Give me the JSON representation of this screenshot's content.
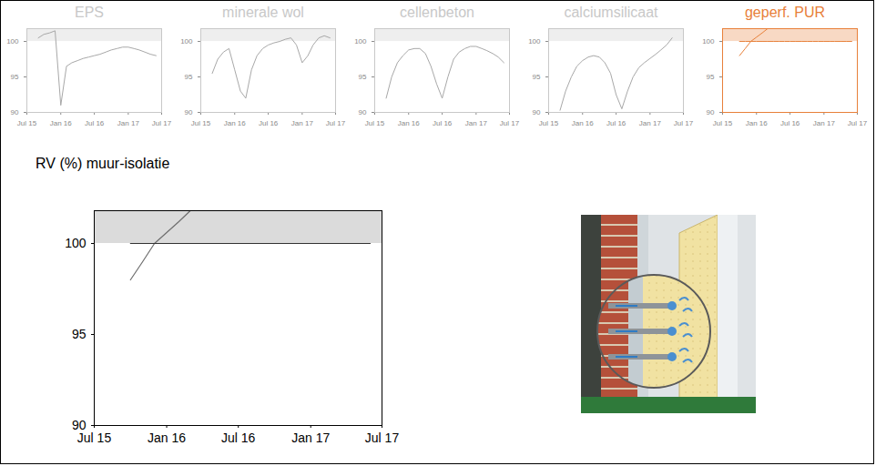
{
  "chart_data": [
    {
      "type": "line",
      "title": "EPS",
      "color": "#c8c8c8",
      "x": [
        "2015-07",
        "2015-08",
        "2015-09",
        "2015-10",
        "2015-11",
        "2015-12",
        "2016-01",
        "2016-02",
        "2016-03",
        "2016-04",
        "2016-05",
        "2016-06",
        "2016-07",
        "2016-08",
        "2016-09",
        "2016-10",
        "2016-11",
        "2016-12",
        "2017-01",
        "2017-02",
        "2017-03",
        "2017-04",
        "2017-05",
        "2017-06",
        "2017-07"
      ],
      "series": [
        {
          "color": "#a8a8a8",
          "values": [
            null,
            null,
            100.5,
            101,
            101.2,
            101.5,
            91,
            96.5,
            97,
            97.3,
            97.6,
            97.8,
            98,
            98.2,
            98.5,
            98.8,
            99,
            99.2,
            99.2,
            99,
            98.8,
            98.5,
            98.2,
            98,
            null
          ]
        }
      ],
      "band": [
        100,
        101.8
      ],
      "xlim": [
        "2015-07",
        "2017-07"
      ],
      "xticks": [
        {
          "value": "2015-07",
          "label": "Jul 15"
        },
        {
          "value": "2016-01",
          "label": "Jan 16"
        },
        {
          "value": "2016-07",
          "label": "Jul 16"
        },
        {
          "value": "2017-01",
          "label": "Jan 17"
        },
        {
          "value": "2017-07",
          "label": "Jul 17"
        }
      ],
      "ylim": [
        90,
        101.8
      ],
      "yticks": [
        90,
        95,
        100
      ]
    },
    {
      "type": "line",
      "title": "minerale wol",
      "color": "#c8c8c8",
      "x": [
        "2015-07",
        "2015-08",
        "2015-09",
        "2015-10",
        "2015-11",
        "2015-12",
        "2016-01",
        "2016-02",
        "2016-03",
        "2016-04",
        "2016-05",
        "2016-06",
        "2016-07",
        "2016-08",
        "2016-09",
        "2016-10",
        "2016-11",
        "2016-12",
        "2017-01",
        "2017-02",
        "2017-03",
        "2017-04",
        "2017-05",
        "2017-06",
        "2017-07"
      ],
      "series": [
        {
          "color": "#a8a8a8",
          "values": [
            null,
            null,
            95.5,
            97.5,
            98.5,
            99,
            96,
            93,
            92,
            96,
            98,
            99,
            99.5,
            99.8,
            100,
            100.3,
            100.5,
            99.5,
            97,
            98,
            99.5,
            100.5,
            100.8,
            100.5,
            null
          ]
        }
      ],
      "band": [
        100,
        101.8
      ],
      "xlim": [
        "2015-07",
        "2017-07"
      ],
      "xticks": [
        {
          "value": "2015-07",
          "label": "Jul 15"
        },
        {
          "value": "2016-01",
          "label": "Jan 16"
        },
        {
          "value": "2016-07",
          "label": "Jul 16"
        },
        {
          "value": "2017-01",
          "label": "Jan 17"
        },
        {
          "value": "2017-07",
          "label": "Jul 17"
        }
      ],
      "ylim": [
        90,
        101.8
      ],
      "yticks": [
        90,
        95,
        100
      ]
    },
    {
      "type": "line",
      "title": "cellenbeton",
      "color": "#c8c8c8",
      "x": [
        "2015-07",
        "2015-08",
        "2015-09",
        "2015-10",
        "2015-11",
        "2015-12",
        "2016-01",
        "2016-02",
        "2016-03",
        "2016-04",
        "2016-05",
        "2016-06",
        "2016-07",
        "2016-08",
        "2016-09",
        "2016-10",
        "2016-11",
        "2016-12",
        "2017-01",
        "2017-02",
        "2017-03",
        "2017-04",
        "2017-05",
        "2017-06",
        "2017-07"
      ],
      "series": [
        {
          "color": "#a8a8a8",
          "values": [
            null,
            null,
            92,
            95,
            97,
            98,
            98.8,
            99,
            99,
            98.3,
            96.5,
            94,
            92,
            95,
            97.5,
            98.5,
            99,
            99.3,
            99.3,
            99,
            98.7,
            98.3,
            97.8,
            97,
            null
          ]
        }
      ],
      "band": [
        100,
        101.8
      ],
      "xlim": [
        "2015-07",
        "2017-07"
      ],
      "xticks": [
        {
          "value": "2015-07",
          "label": "Jul 15"
        },
        {
          "value": "2016-01",
          "label": "Jan 16"
        },
        {
          "value": "2016-07",
          "label": "Jul 16"
        },
        {
          "value": "2017-01",
          "label": "Jan 17"
        },
        {
          "value": "2017-07",
          "label": "Jul 17"
        }
      ],
      "ylim": [
        90,
        101.8
      ],
      "yticks": [
        90,
        95,
        100
      ]
    },
    {
      "type": "line",
      "title": "calciumsilicaat",
      "color": "#c8c8c8",
      "x": [
        "2015-07",
        "2015-08",
        "2015-09",
        "2015-10",
        "2015-11",
        "2015-12",
        "2016-01",
        "2016-02",
        "2016-03",
        "2016-04",
        "2016-05",
        "2016-06",
        "2016-07",
        "2016-08",
        "2016-09",
        "2016-10",
        "2016-11",
        "2016-12",
        "2017-01",
        "2017-02",
        "2017-03",
        "2017-04",
        "2017-05",
        "2017-06",
        "2017-07"
      ],
      "series": [
        {
          "color": "#a8a8a8",
          "values": [
            null,
            null,
            90.3,
            93,
            95,
            96.5,
            97.3,
            97.8,
            98,
            97.8,
            97,
            95.5,
            92.5,
            90.5,
            93,
            95,
            96.3,
            97,
            97.6,
            98.2,
            98.8,
            99.5,
            100.5,
            null,
            null
          ]
        }
      ],
      "band": [
        100,
        101.8
      ],
      "xlim": [
        "2015-07",
        "2017-07"
      ],
      "xticks": [
        {
          "value": "2015-07",
          "label": "Jul 15"
        },
        {
          "value": "2016-01",
          "label": "Jan 16"
        },
        {
          "value": "2016-07",
          "label": "Jul 16"
        },
        {
          "value": "2017-01",
          "label": "Jan 17"
        },
        {
          "value": "2017-07",
          "label": "Jul 17"
        }
      ],
      "ylim": [
        90,
        101.8
      ],
      "yticks": [
        90,
        95,
        100
      ]
    },
    {
      "type": "line",
      "title": "geperf. PUR",
      "color": "#e8803a",
      "x": [
        "2015-07",
        "2015-08",
        "2015-09",
        "2015-10",
        "2015-11",
        "2015-12",
        "2016-01",
        "2016-02",
        "2016-03",
        "2016-04",
        "2016-05",
        "2016-06",
        "2016-07",
        "2016-08",
        "2016-09",
        "2016-10",
        "2016-11",
        "2016-12",
        "2017-01",
        "2017-02",
        "2017-03",
        "2017-04",
        "2017-05",
        "2017-06",
        "2017-07"
      ],
      "series": [
        {
          "color": "#e8803a",
          "values": [
            null,
            null,
            null,
            98,
            99,
            100,
            100.6,
            101.2,
            101.8,
            null,
            null,
            null,
            null,
            null,
            null,
            null,
            null,
            null,
            null,
            null,
            null,
            null,
            null,
            null,
            null
          ]
        },
        {
          "color": "#e8803a",
          "values": [
            null,
            null,
            null,
            100,
            100,
            100,
            100,
            100,
            100,
            100,
            100,
            100,
            100,
            100,
            100,
            100,
            100,
            100,
            100,
            100,
            100,
            100,
            100,
            100,
            null
          ]
        }
      ],
      "band": [
        100,
        101.8
      ],
      "xlim": [
        "2015-07",
        "2017-07"
      ],
      "xticks": [
        {
          "value": "2015-07",
          "label": "Jul 15"
        },
        {
          "value": "2016-01",
          "label": "Jan 16"
        },
        {
          "value": "2016-07",
          "label": "Jul 16"
        },
        {
          "value": "2017-01",
          "label": "Jan 17"
        },
        {
          "value": "2017-07",
          "label": "Jul 17"
        }
      ],
      "ylim": [
        90,
        101.8
      ],
      "yticks": [
        90,
        95,
        100
      ]
    },
    {
      "type": "line",
      "title": "RV (%) muur-isolatie",
      "x": [
        "2015-07",
        "2015-08",
        "2015-09",
        "2015-10",
        "2015-11",
        "2015-12",
        "2016-01",
        "2016-02",
        "2016-03",
        "2016-04",
        "2016-05",
        "2016-06",
        "2016-07",
        "2016-08",
        "2016-09",
        "2016-10",
        "2016-11",
        "2016-12",
        "2017-01",
        "2017-02",
        "2017-03",
        "2017-04",
        "2017-05",
        "2017-06",
        "2017-07"
      ],
      "series": [
        {
          "color": "#6e6e6e",
          "values": [
            null,
            null,
            null,
            98,
            99,
            100,
            100.6,
            101.2,
            101.8,
            null,
            null,
            null,
            null,
            null,
            null,
            null,
            null,
            null,
            null,
            null,
            null,
            null,
            null,
            null,
            null
          ]
        },
        {
          "color": "#333333",
          "values": [
            null,
            null,
            null,
            100,
            100,
            100,
            100,
            100,
            100,
            100,
            100,
            100,
            100,
            100,
            100,
            100,
            100,
            100,
            100,
            100,
            100,
            100,
            100,
            100,
            null
          ]
        }
      ],
      "band": [
        100,
        101.8
      ],
      "xlim": [
        "2015-07",
        "2017-07"
      ],
      "xticks": [
        {
          "value": "2015-07",
          "label": "Jul 15"
        },
        {
          "value": "2016-01",
          "label": "Jan 16"
        },
        {
          "value": "2016-07",
          "label": "Jul 16"
        },
        {
          "value": "2017-01",
          "label": "Jan 17"
        },
        {
          "value": "2017-07",
          "label": "Jul 17"
        }
      ],
      "ylim": [
        90,
        101.8
      ],
      "yticks": [
        90,
        95,
        100
      ]
    }
  ]
}
